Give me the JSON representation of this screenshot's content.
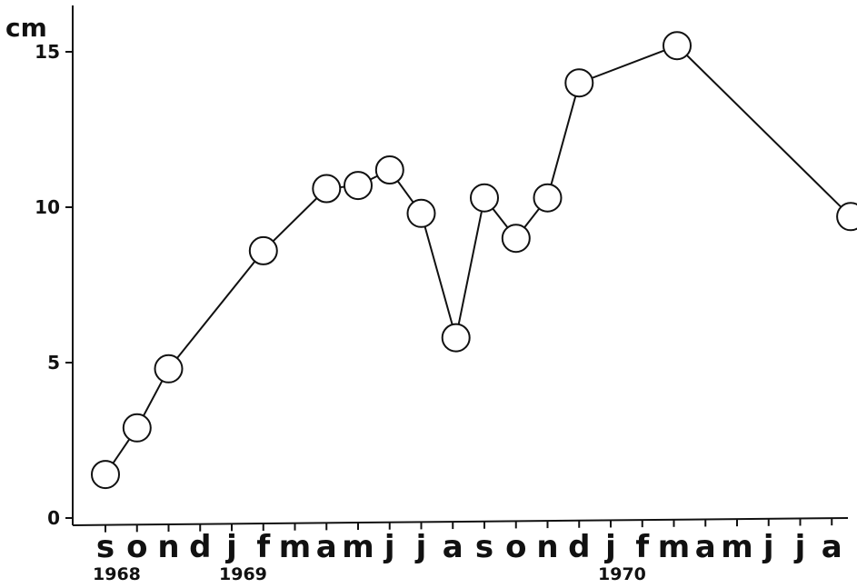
{
  "chart_data": {
    "type": "line",
    "ylabel": "cm",
    "ylim": [
      0,
      16
    ],
    "yticks": [
      0,
      5,
      10,
      15
    ],
    "ytick_labels": [
      "0",
      "5",
      "10",
      "15"
    ],
    "month_labels": [
      "s",
      "o",
      "n",
      "d",
      "j",
      "f",
      "m",
      "a",
      "m",
      "j",
      "j",
      "a",
      "s",
      "o",
      "n",
      "d",
      "j",
      "f",
      "m",
      "a",
      "m",
      "j",
      "j",
      "a"
    ],
    "year_labels": [
      {
        "label": "1968",
        "month_index": 0
      },
      {
        "label": "1969",
        "month_index": 4
      },
      {
        "label": "1970",
        "month_index": 16
      }
    ],
    "grid": false,
    "series": [
      {
        "x": [
          0,
          1,
          2,
          5,
          7,
          8,
          9,
          10,
          11.1,
          12,
          13,
          14,
          15,
          18.1,
          23.6
        ],
        "values": [
          1.4,
          2.9,
          4.8,
          8.6,
          10.6,
          10.7,
          11.2,
          9.8,
          5.8,
          10.3,
          9.0,
          10.3,
          14.0,
          15.2,
          9.7
        ]
      }
    ]
  }
}
